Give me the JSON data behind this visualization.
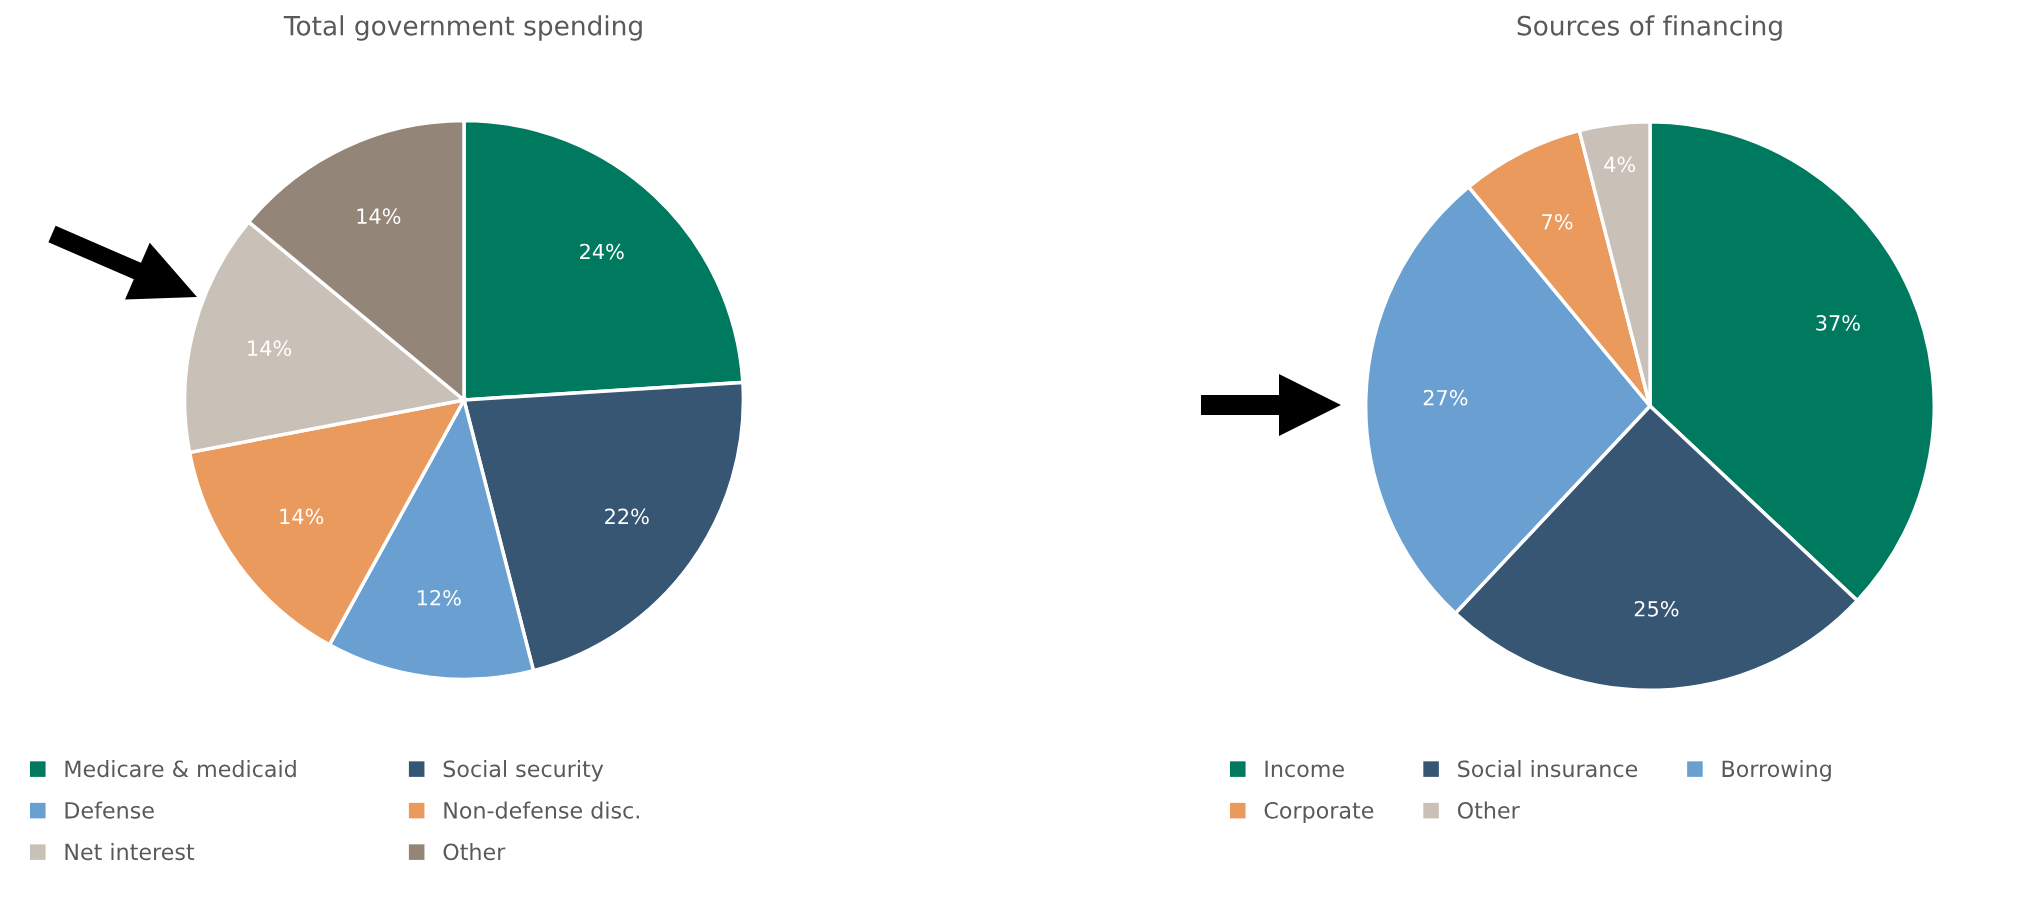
{
  "chart_data": [
    {
      "type": "pie",
      "title": "Total government spending",
      "categories": [
        "Medicare & medicaid",
        "Social security",
        "Defense",
        "Non-defense disc.",
        "Net interest",
        "Other"
      ],
      "values": [
        24,
        22,
        12,
        14,
        14,
        14
      ],
      "value_labels": [
        "24%",
        "22%",
        "12%",
        "14%",
        "14%",
        "14%"
      ],
      "colors": [
        "#007a5e",
        "#375674",
        "#6a9fd1",
        "#eb9a5e",
        "#c9c0b8",
        "#938577"
      ],
      "legend": "bottom"
    },
    {
      "type": "pie",
      "title": "Sources of financing",
      "categories": [
        "Income",
        "Social insurance",
        "Borrowing",
        "Corporate",
        "Other"
      ],
      "values": [
        37,
        25,
        27,
        7,
        4
      ],
      "value_labels": [
        "37%",
        "25%",
        "27%",
        "7%",
        "4%"
      ],
      "colors": [
        "#007a5e",
        "#375674",
        "#6a9fd1",
        "#eb9a5e",
        "#c9c0b8"
      ],
      "legend": "bottom"
    }
  ]
}
